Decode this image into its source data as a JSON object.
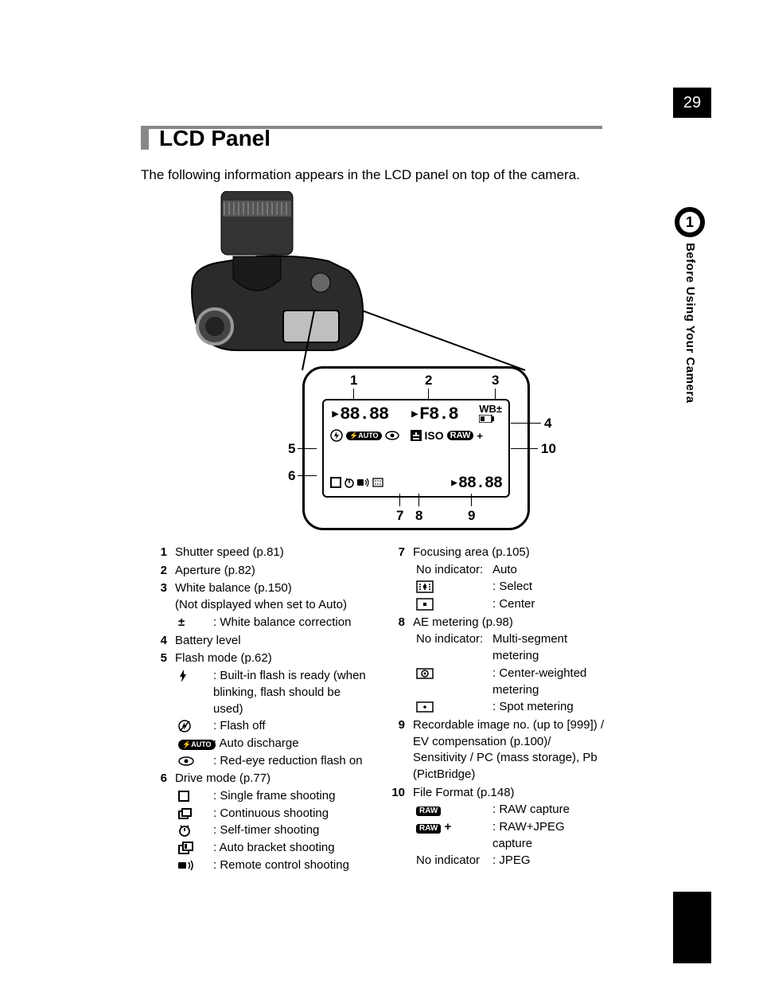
{
  "page_number": "29",
  "chapter_number": "1",
  "chapter_caption": "Before Using Your Camera",
  "title": "LCD Panel",
  "intro": "The following information appears in the LCD panel on top of the camera.",
  "lcd": {
    "top_left": "▸88.88",
    "top_mid": "▸F8.8",
    "top_right": "WB±",
    "mid_iso": "ISO",
    "mid_raw": "RAW",
    "mid_plus": "+",
    "bot_right": "▸88.88",
    "callout_labels": {
      "n1": "1",
      "n2": "2",
      "n3": "3",
      "n4": "4",
      "n5": "5",
      "n6": "6",
      "n7": "7",
      "n8": "8",
      "n9": "9",
      "n10": "10"
    }
  },
  "legend_left": [
    {
      "num": "1",
      "title": "Shutter speed (p.81)"
    },
    {
      "num": "2",
      "title": "Aperture (p.82)"
    },
    {
      "num": "3",
      "title": "White balance (p.150)",
      "note": "(Not displayed when set to Auto)",
      "subs": [
        {
          "icon": "pm",
          "text": ": White balance correction"
        }
      ]
    },
    {
      "num": "4",
      "title": "Battery level"
    },
    {
      "num": "5",
      "title": "Flash mode (p.62)",
      "subs": [
        {
          "icon": "bolt",
          "text": ": Built-in flash is ready (when blinking, flash should be used)"
        },
        {
          "icon": "noflash",
          "text": ": Flash off"
        },
        {
          "icon": "fauto",
          "text": ": Auto discharge"
        },
        {
          "icon": "eye",
          "text": ": Red-eye reduction flash on"
        }
      ]
    },
    {
      "num": "6",
      "title": "Drive mode (p.77)",
      "subs": [
        {
          "icon": "single",
          "text": ": Single frame shooting"
        },
        {
          "icon": "cont",
          "text": ": Continuous shooting"
        },
        {
          "icon": "timer",
          "text": ": Self-timer shooting"
        },
        {
          "icon": "bracket",
          "text": ": Auto bracket shooting"
        },
        {
          "icon": "remote",
          "text": ": Remote control shooting"
        }
      ]
    }
  ],
  "legend_right": [
    {
      "num": "7",
      "title": "Focusing area (p.105)",
      "subs": [
        {
          "label": "No indicator:",
          "text": "Auto"
        },
        {
          "icon": "af-select",
          "text": ": Select"
        },
        {
          "icon": "af-center",
          "text": ": Center"
        }
      ]
    },
    {
      "num": "8",
      "title": "AE metering (p.98)",
      "subs": [
        {
          "label": "No indicator:",
          "text": "Multi-segment metering"
        },
        {
          "icon": "cw-meter",
          "text": ": Center-weighted metering"
        },
        {
          "icon": "spot-meter",
          "text": ": Spot metering"
        }
      ]
    },
    {
      "num": "9",
      "title": "Recordable image no. (up to [999]) / EV compensation (p.100)/ Sensitivity / PC (mass storage), Pb (PictBridge)"
    },
    {
      "num": "10",
      "title": "File Format (p.148)",
      "subs": [
        {
          "icon": "raw",
          "text": ": RAW capture"
        },
        {
          "icon": "rawplus",
          "text": ": RAW+JPEG capture"
        },
        {
          "label": "No indicator",
          "text": ": JPEG"
        }
      ]
    }
  ],
  "icons_alt": {
    "pm": "±",
    "bolt": "⚡",
    "noflash": "⊘",
    "fauto": "AUTO",
    "eye": "◉",
    "single": "□",
    "cont": "❐",
    "timer": "◔",
    "bracket": "⧉",
    "remote": "▮)))",
    "af-select": "▭",
    "af-center": "▭·",
    "cw-meter": "◎",
    "spot-meter": "▫·",
    "raw": "RAW",
    "rawplus": "RAW+"
  },
  "colors": {
    "rule": "#888888",
    "text": "#000000",
    "page_bg": "#ffffff"
  }
}
